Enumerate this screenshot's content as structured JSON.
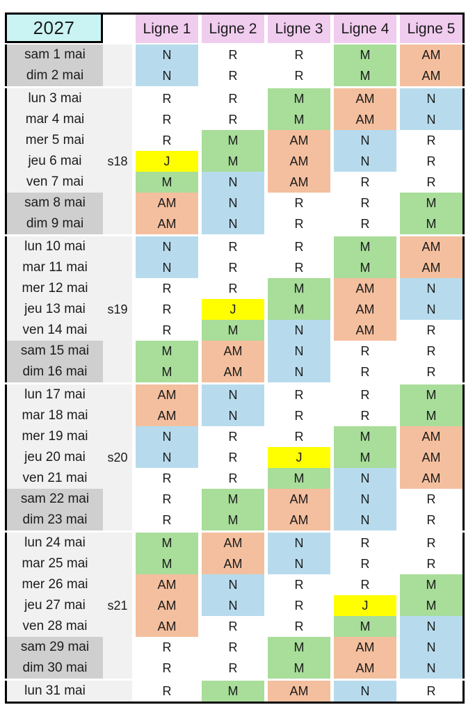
{
  "title": {
    "year": "2027"
  },
  "columns": [
    "Ligne 1",
    "Ligne 2",
    "Ligne 3",
    "Ligne 4",
    "Ligne 5"
  ],
  "shift_codes": [
    "N",
    "R",
    "M",
    "AM",
    "J"
  ],
  "colors": {
    "N": "#B7DBED",
    "M": "#A8DD9A",
    "AM": "#F4BF9E",
    "J": "#FFFF00",
    "R": "#FFFFFF",
    "header_pink": "#F0CCEE",
    "year_cyan": "#CAF4F4",
    "weekend_gray": "#CFCFCF",
    "weekday_gray": "#F1F1F1"
  },
  "groups": [
    {
      "rows": [
        {
          "date": "sam 1 mai",
          "week": "",
          "weekend": true,
          "values": [
            "N",
            "R",
            "R",
            "M",
            "AM"
          ]
        },
        {
          "date": "dim 2 mai",
          "week": "",
          "weekend": true,
          "values": [
            "N",
            "R",
            "R",
            "M",
            "AM"
          ]
        }
      ]
    },
    {
      "rows": [
        {
          "date": "lun 3 mai",
          "week": "",
          "weekend": false,
          "values": [
            "R",
            "R",
            "M",
            "AM",
            "N"
          ]
        },
        {
          "date": "mar 4 mai",
          "week": "",
          "weekend": false,
          "values": [
            "R",
            "R",
            "M",
            "AM",
            "N"
          ]
        },
        {
          "date": "mer 5 mai",
          "week": "",
          "weekend": false,
          "values": [
            "R",
            "M",
            "AM",
            "N",
            "R"
          ]
        },
        {
          "date": "jeu 6 mai",
          "week": "s18",
          "weekend": false,
          "values": [
            "J",
            "M",
            "AM",
            "N",
            "R"
          ]
        },
        {
          "date": "ven 7 mai",
          "week": "",
          "weekend": false,
          "values": [
            "M",
            "N",
            "AM",
            "R",
            "R"
          ]
        },
        {
          "date": "sam 8 mai",
          "week": "",
          "weekend": true,
          "values": [
            "AM",
            "N",
            "R",
            "R",
            "M"
          ]
        },
        {
          "date": "dim 9 mai",
          "week": "",
          "weekend": true,
          "values": [
            "AM",
            "N",
            "R",
            "R",
            "M"
          ]
        }
      ]
    },
    {
      "rows": [
        {
          "date": "lun 10 mai",
          "week": "",
          "weekend": false,
          "values": [
            "N",
            "R",
            "R",
            "M",
            "AM"
          ]
        },
        {
          "date": "mar 11 mai",
          "week": "",
          "weekend": false,
          "values": [
            "N",
            "R",
            "R",
            "M",
            "AM"
          ]
        },
        {
          "date": "mer 12 mai",
          "week": "",
          "weekend": false,
          "values": [
            "R",
            "R",
            "M",
            "AM",
            "N"
          ]
        },
        {
          "date": "jeu 13 mai",
          "week": "s19",
          "weekend": false,
          "values": [
            "R",
            "J",
            "M",
            "AM",
            "N"
          ]
        },
        {
          "date": "ven 14 mai",
          "week": "",
          "weekend": false,
          "values": [
            "R",
            "M",
            "N",
            "AM",
            "R"
          ]
        },
        {
          "date": "sam 15 mai",
          "week": "",
          "weekend": true,
          "values": [
            "M",
            "AM",
            "N",
            "R",
            "R"
          ]
        },
        {
          "date": "dim 16 mai",
          "week": "",
          "weekend": true,
          "values": [
            "M",
            "AM",
            "N",
            "R",
            "R"
          ]
        }
      ]
    },
    {
      "rows": [
        {
          "date": "lun 17 mai",
          "week": "",
          "weekend": false,
          "values": [
            "AM",
            "N",
            "R",
            "R",
            "M"
          ]
        },
        {
          "date": "mar 18 mai",
          "week": "",
          "weekend": false,
          "values": [
            "AM",
            "N",
            "R",
            "R",
            "M"
          ]
        },
        {
          "date": "mer 19 mai",
          "week": "",
          "weekend": false,
          "values": [
            "N",
            "R",
            "R",
            "M",
            "AM"
          ]
        },
        {
          "date": "jeu 20 mai",
          "week": "s20",
          "weekend": false,
          "values": [
            "N",
            "R",
            "J",
            "M",
            "AM"
          ]
        },
        {
          "date": "ven 21 mai",
          "week": "",
          "weekend": false,
          "values": [
            "R",
            "R",
            "M",
            "N",
            "AM"
          ]
        },
        {
          "date": "sam 22 mai",
          "week": "",
          "weekend": true,
          "values": [
            "R",
            "M",
            "AM",
            "N",
            "R"
          ]
        },
        {
          "date": "dim 23 mai",
          "week": "",
          "weekend": true,
          "values": [
            "R",
            "M",
            "AM",
            "N",
            "R"
          ]
        }
      ]
    },
    {
      "rows": [
        {
          "date": "lun 24 mai",
          "week": "",
          "weekend": false,
          "values": [
            "M",
            "AM",
            "N",
            "R",
            "R"
          ]
        },
        {
          "date": "mar 25 mai",
          "week": "",
          "weekend": false,
          "values": [
            "M",
            "AM",
            "N",
            "R",
            "R"
          ]
        },
        {
          "date": "mer 26 mai",
          "week": "",
          "weekend": false,
          "values": [
            "AM",
            "N",
            "R",
            "R",
            "M"
          ]
        },
        {
          "date": "jeu 27 mai",
          "week": "s21",
          "weekend": false,
          "values": [
            "AM",
            "N",
            "R",
            "J",
            "M"
          ]
        },
        {
          "date": "ven 28 mai",
          "week": "",
          "weekend": false,
          "values": [
            "AM",
            "R",
            "R",
            "M",
            "N"
          ]
        },
        {
          "date": "sam 29 mai",
          "week": "",
          "weekend": true,
          "values": [
            "R",
            "R",
            "M",
            "AM",
            "N"
          ]
        },
        {
          "date": "dim 30 mai",
          "week": "",
          "weekend": true,
          "values": [
            "R",
            "R",
            "M",
            "AM",
            "N"
          ]
        }
      ]
    },
    {
      "rows": [
        {
          "date": "lun 31 mai",
          "week": "",
          "weekend": false,
          "values": [
            "R",
            "M",
            "AM",
            "N",
            "R"
          ]
        }
      ]
    }
  ]
}
